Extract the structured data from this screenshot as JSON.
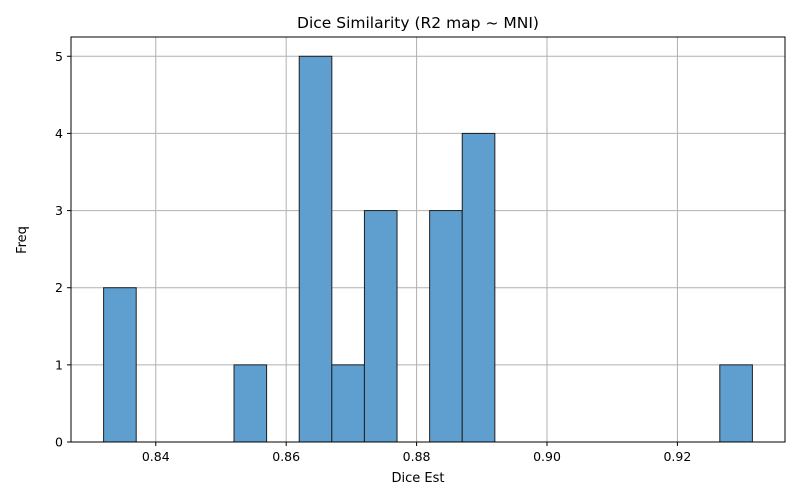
{
  "chart_data": {
    "type": "bar",
    "subtype": "histogram",
    "title": "Dice Similarity (R2 map ~ MNI)",
    "xlabel": "Dice Est",
    "ylabel": "Freq",
    "xlim": [
      0.827,
      0.9365
    ],
    "ylim": [
      0,
      5.25
    ],
    "xticks": [
      0.84,
      0.86,
      0.88,
      0.9,
      0.92
    ],
    "xtick_labels": [
      "0.84",
      "0.86",
      "0.88",
      "0.90",
      "0.92"
    ],
    "yticks": [
      0,
      1,
      2,
      3,
      4,
      5
    ],
    "ytick_labels": [
      "0",
      "1",
      "2",
      "3",
      "4",
      "5"
    ],
    "grid": true,
    "bar_color": "#5f9fcf",
    "edge_color": "#1f1f1f",
    "bins": [
      {
        "x0": 0.832,
        "x1": 0.837,
        "count": 2
      },
      {
        "x0": 0.852,
        "x1": 0.857,
        "count": 1
      },
      {
        "x0": 0.862,
        "x1": 0.867,
        "count": 5
      },
      {
        "x0": 0.867,
        "x1": 0.872,
        "count": 1
      },
      {
        "x0": 0.872,
        "x1": 0.877,
        "count": 3
      },
      {
        "x0": 0.882,
        "x1": 0.887,
        "count": 3
      },
      {
        "x0": 0.887,
        "x1": 0.892,
        "count": 4
      },
      {
        "x0": 0.9265,
        "x1": 0.9315,
        "count": 1
      }
    ]
  }
}
